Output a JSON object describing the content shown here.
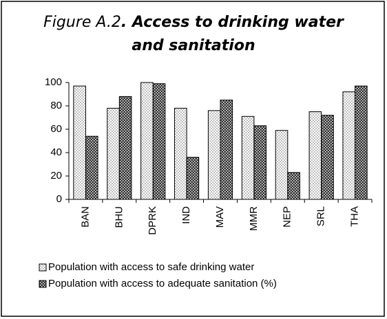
{
  "chart_data": {
    "type": "bar",
    "title": {
      "label": "Figure A.2",
      "text": ". Access to drinking water and sanitation"
    },
    "categories": [
      "BAN",
      "BHU",
      "DPRK",
      "IND",
      "MAV",
      "MMR",
      "NEP",
      "SRL",
      "THA"
    ],
    "series": [
      {
        "name": "Population with access to safe drinking water",
        "color": "#bfbfbf",
        "values": [
          97,
          78,
          100,
          78,
          76,
          71,
          59,
          75,
          92
        ]
      },
      {
        "name": "Population with access to adequate sanitation (%)",
        "color": "#333333",
        "values": [
          54,
          88,
          99,
          36,
          85,
          63,
          23,
          72,
          97
        ]
      }
    ],
    "ylim": [
      0,
      100
    ],
    "yticks": [
      0,
      20,
      40,
      60,
      80,
      100
    ],
    "grid": false
  }
}
